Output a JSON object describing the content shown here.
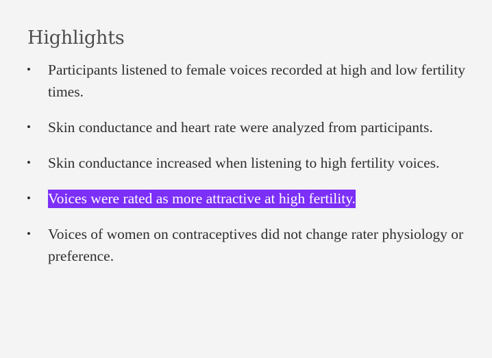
{
  "highlights": {
    "title": "Highlights",
    "bullet_glyph": "•",
    "items": [
      {
        "text": "Participants listened to female voices recorded at high and low fertility times.",
        "selected": false
      },
      {
        "text": "Skin conductance and heart rate were analyzed from participants.",
        "selected": false
      },
      {
        "text": "Skin conductance increased when listening to high fertility voices.",
        "selected": false
      },
      {
        "text": "Voices were rated as more attractive at high fertility.",
        "selected": true
      },
      {
        "text": "Voices of women on contraceptives did not change rater physiology or preference.",
        "selected": false
      }
    ]
  },
  "colors": {
    "background": "#f4f4f4",
    "text": "#2e2e2e",
    "heading": "#4d4d4d",
    "selection_background": "#7b2ff7",
    "selection_text": "#ffffff"
  }
}
